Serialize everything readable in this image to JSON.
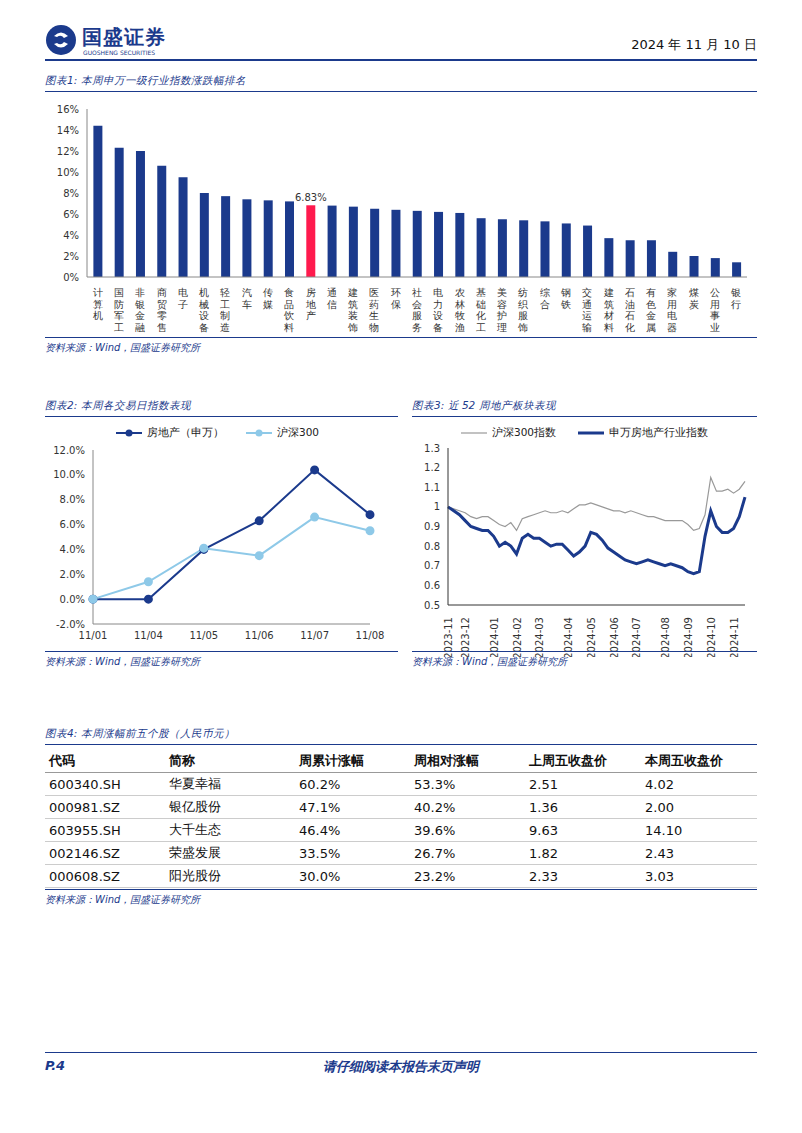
{
  "header": {
    "company": "国盛证券",
    "company_en": "GUOSHENG SECURITIES",
    "date": "2024 年 11 月 10 日"
  },
  "chart_data": [
    {
      "type": "bar",
      "title": "图表1: 本周申万一级行业指数涨跌幅排名",
      "source": "资料来源：Wind，国盛证券研究所",
      "categories": [
        "计算机",
        "国防军工",
        "非银金融",
        "商贸零售",
        "电子",
        "机械设备",
        "轻工制造",
        "汽车",
        "传媒",
        "食品饮料",
        "房地产",
        "通信",
        "建筑装饰",
        "医药生物",
        "环保",
        "社会服务",
        "电力设备",
        "农林牧渔",
        "基础化工",
        "美容护理",
        "纺织服饰",
        "综合",
        "钢铁",
        "交通运输",
        "建筑材料",
        "石油石化",
        "有色金属",
        "家用电器",
        "煤炭",
        "公用事业",
        "银行"
      ],
      "values": [
        14.4,
        12.3,
        12.0,
        10.6,
        9.5,
        8.0,
        7.7,
        7.4,
        7.3,
        7.2,
        6.83,
        6.8,
        6.7,
        6.5,
        6.4,
        6.3,
        6.2,
        6.1,
        5.6,
        5.5,
        5.4,
        5.3,
        5.1,
        4.9,
        3.7,
        3.5,
        3.5,
        2.4,
        2.0,
        1.8,
        1.4
      ],
      "value_labels": [
        null,
        null,
        null,
        null,
        null,
        null,
        null,
        null,
        null,
        null,
        "6.83%",
        null,
        null,
        null,
        null,
        null,
        null,
        null,
        null,
        null,
        null,
        null,
        null,
        null,
        null,
        null,
        null,
        null,
        null,
        null,
        null
      ],
      "colors": [
        "#1b3a8c",
        "#1b3a8c",
        "#1b3a8c",
        "#1b3a8c",
        "#1b3a8c",
        "#1b3a8c",
        "#1b3a8c",
        "#1b3a8c",
        "#1b3a8c",
        "#1b3a8c",
        "#ff1a4d",
        "#1b3a8c",
        "#1b3a8c",
        "#1b3a8c",
        "#1b3a8c",
        "#1b3a8c",
        "#1b3a8c",
        "#1b3a8c",
        "#1b3a8c",
        "#1b3a8c",
        "#1b3a8c",
        "#1b3a8c",
        "#1b3a8c",
        "#1b3a8c",
        "#1b3a8c",
        "#1b3a8c",
        "#1b3a8c",
        "#1b3a8c",
        "#1b3a8c",
        "#1b3a8c",
        "#1b3a8c"
      ],
      "ylim": [
        0,
        16
      ],
      "yticks": [
        {
          "value": 0,
          "label": "0%"
        },
        {
          "value": 2,
          "label": "2%"
        },
        {
          "value": 4,
          "label": "4%"
        },
        {
          "value": 6,
          "label": "6%"
        },
        {
          "value": 8,
          "label": "8%"
        },
        {
          "value": 10,
          "label": "10%"
        },
        {
          "value": 12,
          "label": "12%"
        },
        {
          "value": 14,
          "label": "14%"
        },
        {
          "value": 16,
          "label": "16%"
        }
      ],
      "grid": false
    },
    {
      "type": "line",
      "title": "图表2: 本周各交易日指数表现",
      "source": "资料来源：Wind，国盛证券研究所",
      "categories": [
        "11/01",
        "11/04",
        "11/05",
        "11/06",
        "11/07",
        "11/08"
      ],
      "series": [
        {
          "name": "房地产（申万）",
          "color": "#1b3a8c",
          "marker": "circle",
          "values": [
            0,
            0,
            4.0,
            6.3,
            10.4,
            6.8
          ]
        },
        {
          "name": "沪深300",
          "color": "#8ec9e8",
          "marker": "circle",
          "values": [
            0,
            1.4,
            4.1,
            3.5,
            6.6,
            5.5
          ]
        }
      ],
      "ylim": [
        -2,
        12
      ],
      "yticks": [
        {
          "value": -2,
          "label": "-2.0%"
        },
        {
          "value": 0,
          "label": "0.0%"
        },
        {
          "value": 2,
          "label": "2.0%"
        },
        {
          "value": 4,
          "label": "4.0%"
        },
        {
          "value": 6,
          "label": "6.0%"
        },
        {
          "value": 8,
          "label": "8.0%"
        },
        {
          "value": 10,
          "label": "10.0%"
        },
        {
          "value": 12,
          "label": "12.0%"
        }
      ],
      "legend": "top",
      "grid": false
    },
    {
      "type": "line",
      "title": "图表3: 近 52 周地产板块表现",
      "source": "资料来源：Wind，国盛证券研究所",
      "categories": [
        "2023-11",
        null,
        null,
        "2023-12",
        null,
        null,
        null,
        null,
        "2024-01",
        null,
        null,
        null,
        "2024-02",
        null,
        null,
        null,
        "2024-03",
        null,
        null,
        null,
        null,
        "2024-04",
        null,
        null,
        null,
        "2024-05",
        null,
        null,
        null,
        "2024-06",
        null,
        null,
        null,
        "2024-07",
        null,
        null,
        null,
        null,
        "2024-08",
        null,
        null,
        null,
        "2024-09",
        null,
        null,
        null,
        "2024-10",
        null,
        null,
        null,
        "2024-11",
        null,
        null
      ],
      "series": [
        {
          "name": "沪深300指数",
          "color": "#999999",
          "values": [
            1.0,
            0.99,
            0.98,
            0.97,
            0.95,
            0.94,
            0.95,
            0.95,
            0.93,
            0.91,
            0.9,
            0.92,
            0.88,
            0.94,
            0.95,
            0.96,
            0.97,
            0.98,
            0.97,
            0.97,
            0.98,
            0.97,
            0.99,
            1.01,
            1.01,
            1.02,
            1.01,
            1.0,
            0.99,
            0.98,
            0.98,
            0.97,
            0.98,
            0.97,
            0.96,
            0.95,
            0.95,
            0.94,
            0.93,
            0.93,
            0.93,
            0.93,
            0.91,
            0.88,
            0.89,
            0.96,
            1.15,
            1.08,
            1.08,
            1.09,
            1.07,
            1.09,
            1.13
          ]
        },
        {
          "name": "申万房地产行业指数",
          "color": "#1b3a8c",
          "values": [
            1.0,
            0.98,
            0.96,
            0.93,
            0.9,
            0.89,
            0.88,
            0.88,
            0.85,
            0.8,
            0.82,
            0.8,
            0.76,
            0.84,
            0.86,
            0.84,
            0.84,
            0.82,
            0.8,
            0.81,
            0.81,
            0.78,
            0.75,
            0.77,
            0.8,
            0.87,
            0.86,
            0.83,
            0.79,
            0.77,
            0.75,
            0.73,
            0.72,
            0.71,
            0.72,
            0.73,
            0.72,
            0.71,
            0.7,
            0.71,
            0.7,
            0.69,
            0.67,
            0.66,
            0.67,
            0.85,
            0.98,
            0.9,
            0.87,
            0.87,
            0.89,
            0.95,
            1.05
          ]
        }
      ],
      "ylim": [
        0.5,
        1.3
      ],
      "yticks": [
        0.5,
        0.6,
        0.7,
        0.8,
        0.9,
        1,
        1.1,
        1.2,
        1.3
      ],
      "legend": "top",
      "grid": false
    }
  ],
  "table": {
    "title": "图表4: 本周涨幅前五个股（人民币元）",
    "source": "资料来源：Wind，国盛证券研究所",
    "header": [
      "代码",
      "简称",
      "周累计涨幅",
      "周相对涨幅",
      "上周五收盘价",
      "本周五收盘价"
    ],
    "rows": [
      [
        "600340.SH",
        "华夏幸福",
        "60.2%",
        "53.3%",
        "2.51",
        "4.02"
      ],
      [
        "000981.SZ",
        "银亿股份",
        "47.1%",
        "40.2%",
        "1.36",
        "2.00"
      ],
      [
        "603955.SH",
        "大千生态",
        "46.4%",
        "39.6%",
        "9.63",
        "14.10"
      ],
      [
        "002146.SZ",
        "荣盛发展",
        "33.5%",
        "26.7%",
        "1.82",
        "2.43"
      ],
      [
        "000608.SZ",
        "阳光股份",
        "30.0%",
        "23.2%",
        "2.33",
        "3.03"
      ]
    ]
  },
  "footer": {
    "page": "P.4",
    "note": "请仔细阅读本报告末页声明"
  }
}
